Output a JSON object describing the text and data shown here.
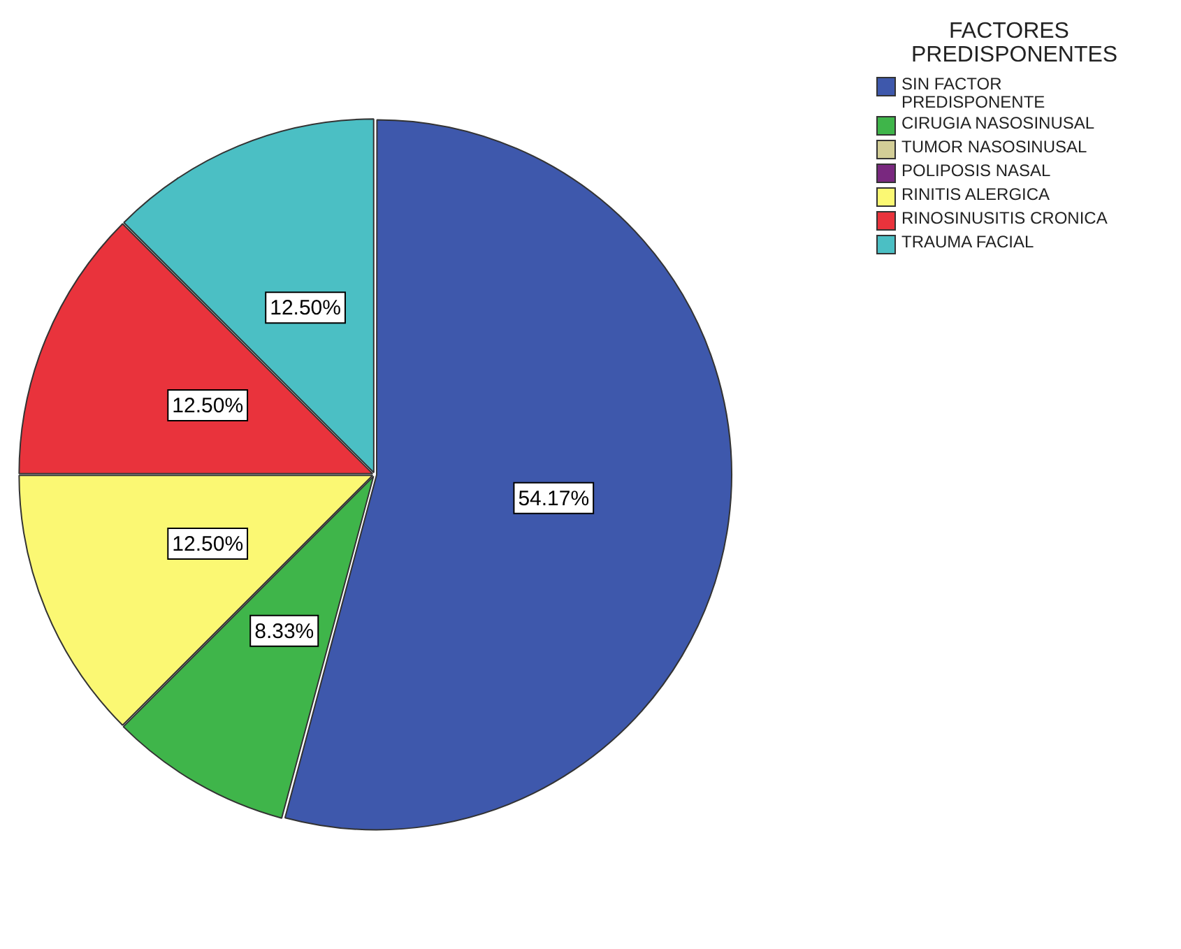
{
  "chart_data": {
    "type": "pie",
    "legend_title": "FACTORES PREDISPONENTES",
    "legend": "top right",
    "categories": [
      "SIN FACTOR PREDISPONENTE",
      "CIRUGIA NASOSINUSAL",
      "TUMOR NASOSINUSAL",
      "POLIPOSIS NASAL",
      "RINITIS ALERGICA",
      "RINOSINUSITIS CRONICA",
      "TRAUMA FACIAL"
    ],
    "values": [
      54.17,
      8.33,
      0,
      0,
      12.5,
      12.5,
      12.5
    ],
    "colors": [
      "#3e58ac",
      "#3fb54a",
      "#d3ce97",
      "#79287f",
      "#fbf873",
      "#e9333c",
      "#4bbfc4"
    ],
    "value_labels": [
      "54.17%",
      "8.33%",
      null,
      null,
      "12.50%",
      "12.50%",
      "12.50%"
    ]
  }
}
